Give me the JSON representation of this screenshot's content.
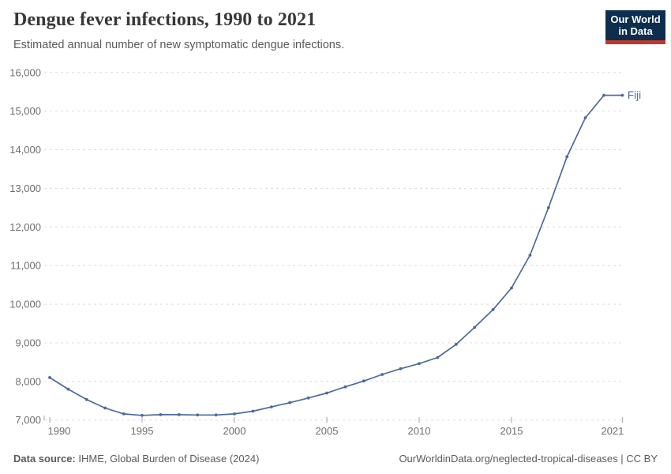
{
  "header": {
    "title": "Dengue fever infections, 1990 to 2021",
    "subtitle": "Estimated annual number of new symptomatic dengue infections.",
    "logo": {
      "line1": "Our World",
      "line2": "in Data"
    }
  },
  "chart_data": {
    "type": "line",
    "title": "Dengue fever infections, 1990 to 2021",
    "xlabel": "",
    "ylabel": "",
    "x": [
      1990,
      1991,
      1992,
      1993,
      1994,
      1995,
      1996,
      1997,
      1998,
      1999,
      2000,
      2001,
      2002,
      2003,
      2004,
      2005,
      2006,
      2007,
      2008,
      2009,
      2010,
      2011,
      2012,
      2013,
      2014,
      2015,
      2016,
      2017,
      2018,
      2019,
      2020,
      2021
    ],
    "series": [
      {
        "name": "Fiji",
        "color": "#4c6a9c",
        "values": [
          8100,
          7800,
          7530,
          7310,
          7160,
          7120,
          7140,
          7140,
          7130,
          7130,
          7160,
          7230,
          7340,
          7450,
          7570,
          7700,
          7860,
          8010,
          8180,
          8330,
          8460,
          8620,
          8960,
          9400,
          9860,
          10420,
          11270,
          12500,
          13820,
          14830,
          15410,
          15410
        ]
      }
    ],
    "ylim": [
      7000,
      16000
    ],
    "ytick_step": 1000,
    "ytick_labels": [
      "7,000",
      "8,000",
      "9,000",
      "10,000",
      "11,000",
      "12,000",
      "13,000",
      "14,000",
      "15,000",
      "16,000"
    ],
    "xticks": [
      1990,
      1995,
      2000,
      2005,
      2010,
      2015,
      2021
    ],
    "grid": "horizontal-dashed",
    "legend_position": "end-of-line-label",
    "end_label": "Fiji"
  },
  "footer": {
    "source_label": "Data source:",
    "source_text": " IHME, Global Burden of Disease (2024)",
    "credit": "OurWorldinData.org/neglected-tropical-diseases | CC BY"
  },
  "colors": {
    "line": "#4c6a9c",
    "grid": "#dcdcdc",
    "tick_text": "#6e6e6e",
    "tick_mark": "#a3a3a3",
    "title": "#383838",
    "subtitle": "#5a5a5a",
    "footer": "#5a5a5a",
    "logo_bg": "#0d2e4e",
    "logo_bar": "#c0392b"
  }
}
